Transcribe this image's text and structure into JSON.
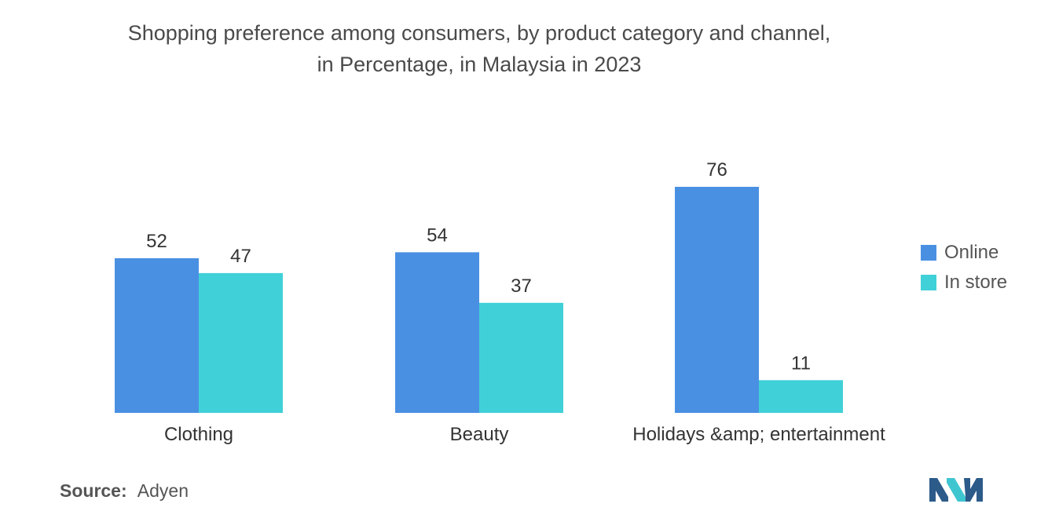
{
  "title_line1": "Shopping preference among consumers, by product category and channel,",
  "title_line2": "in Percentage, in Malaysia in 2023",
  "source_label": "Source:",
  "source_value": "Adyen",
  "colors": {
    "online": "#4a90e2",
    "in_store": "#40d0d8",
    "text": "#333333",
    "axis": "#d9d9d9",
    "logo_dark": "#2c5b8a",
    "logo_light": "#3ec6d0"
  },
  "chart_data": {
    "type": "bar",
    "title": "Shopping preference among consumers, by product category and channel, in Percentage, in Malaysia in 2023",
    "categories": [
      "Clothing",
      "Beauty",
      "Holidays &amp; entertainment"
    ],
    "series": [
      {
        "name": "Online",
        "values": [
          52,
          54,
          76
        ]
      },
      {
        "name": "In store",
        "values": [
          47,
          37,
          11
        ]
      }
    ],
    "xlabel": "",
    "ylabel": "",
    "ylim": [
      0,
      76
    ],
    "grid": false,
    "legend_position": "right"
  }
}
